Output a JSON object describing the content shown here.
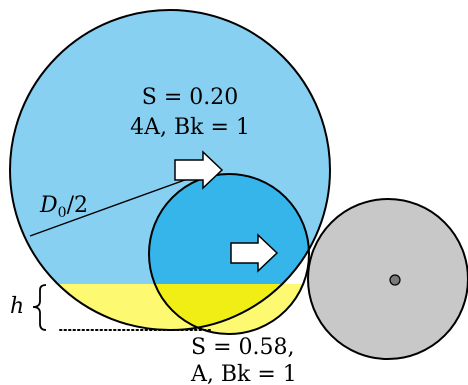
{
  "labels": {
    "big_s": "S = 0.20",
    "big_params": "4A, Bk = 1",
    "radius_d": "D",
    "radius_sub": "0",
    "radius_rest": "/2",
    "height": "h",
    "small_s": "S = 0.58,",
    "small_params": "A, Bk = 1"
  },
  "colors": {
    "large_drop_fill": "#88d0f2",
    "small_drop_fill": "#35b5ea",
    "yellow_region": "#fdfa72",
    "gray_circle": "#c8c8c8",
    "center_dot": "#7a7a7a",
    "outline": "#000000"
  }
}
